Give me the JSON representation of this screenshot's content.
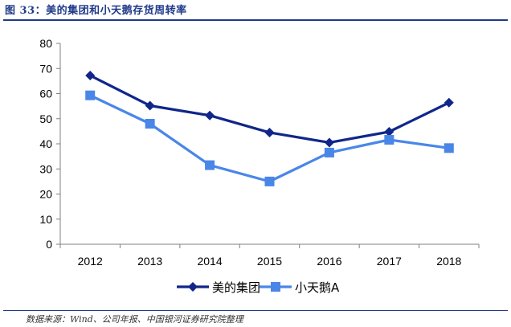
{
  "figure": {
    "title": "图 33：美的集团和小天鹅存货周转率",
    "source": "数据来源：Wind、公司年报、中国银河证券研究院整理"
  },
  "chart_data": {
    "type": "line",
    "categories": [
      "2012",
      "2013",
      "2014",
      "2015",
      "2016",
      "2017",
      "2018"
    ],
    "ylim": [
      0,
      80
    ],
    "yticks": [
      "0",
      "10",
      "20",
      "30",
      "40",
      "50",
      "60",
      "70",
      "80"
    ],
    "grid": false,
    "legend": "bottom",
    "series": [
      {
        "name": "美的集团",
        "values": [
          67.2,
          55.2,
          51.3,
          44.5,
          40.5,
          44.8,
          56.4
        ],
        "color": "#10268a",
        "marker": "diamond"
      },
      {
        "name": "小天鹅A",
        "values": [
          59.3,
          48.0,
          31.5,
          25.0,
          36.5,
          41.6,
          38.3
        ],
        "color": "#4a86e8",
        "marker": "square"
      }
    ]
  }
}
